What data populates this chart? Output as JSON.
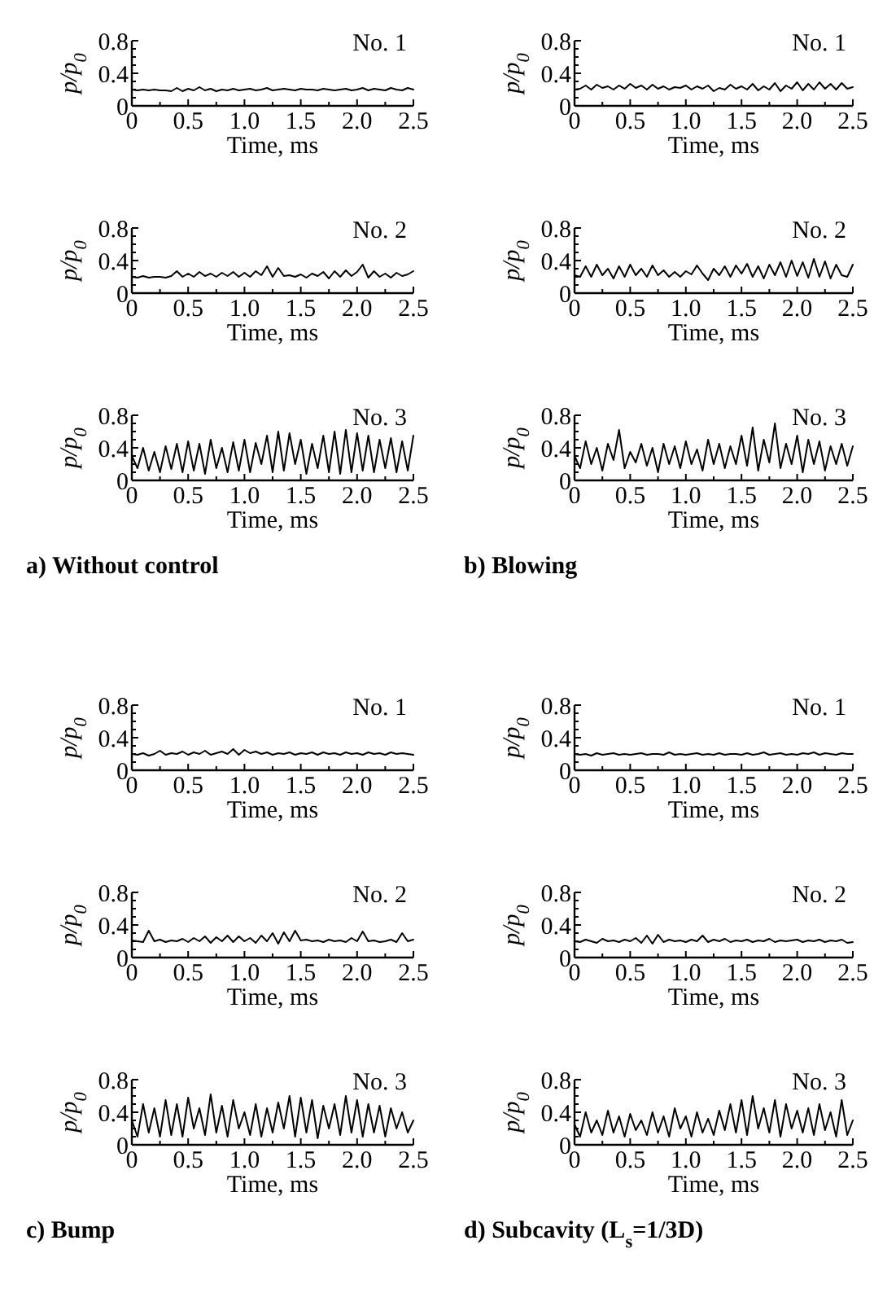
{
  "chart_data": [
    {
      "type": "line",
      "title": "No. 1",
      "xlabel": "Time, ms",
      "ylabel": "p/p$_{0}$",
      "xlim": [
        0,
        2.5
      ],
      "ylim": [
        0,
        0.8
      ],
      "xticks": [
        0,
        {
          "value": 0.25,
          "label": null
        },
        0.5,
        {
          "value": 0.75,
          "label": null
        },
        {
          "value": 1,
          "label": "1.0"
        },
        {
          "value": 1.25,
          "label": null
        },
        1.5,
        {
          "value": 1.75,
          "label": null
        },
        {
          "value": 2,
          "label": "2.0"
        },
        {
          "value": 2.25,
          "label": null
        },
        2.5
      ],
      "yticks": [
        0,
        {
          "value": 0.1,
          "label": null
        },
        {
          "value": 0.2,
          "label": null
        },
        {
          "value": 0.3,
          "label": null
        },
        0.4,
        {
          "value": 0.5,
          "label": null
        },
        {
          "value": 0.6,
          "label": null
        },
        {
          "value": 0.7,
          "label": null
        },
        0.8
      ],
      "series": [
        {
          "color": "#000000",
          "x": [
            0,
            0.05,
            0.1,
            0.15,
            0.2,
            0.25,
            0.3,
            0.35,
            0.4,
            0.45,
            0.5,
            0.55,
            0.6,
            0.65,
            0.7,
            0.75,
            0.8,
            0.85,
            0.9,
            0.95,
            1,
            1.05,
            1.1,
            1.15,
            1.2,
            1.25,
            1.3,
            1.35,
            1.4,
            1.45,
            1.5,
            1.55,
            1.6,
            1.65,
            1.7,
            1.75,
            1.8,
            1.85,
            1.9,
            1.95,
            2,
            2.05,
            2.1,
            2.15,
            2.2,
            2.25,
            2.3,
            2.35,
            2.4,
            2.45,
            2.5
          ],
          "values": [
            0.2,
            0.19,
            0.2,
            0.19,
            0.2,
            0.19,
            0.19,
            0.18,
            0.22,
            0.18,
            0.21,
            0.19,
            0.23,
            0.19,
            0.21,
            0.18,
            0.2,
            0.19,
            0.21,
            0.19,
            0.2,
            0.21,
            0.19,
            0.2,
            0.22,
            0.19,
            0.2,
            0.21,
            0.2,
            0.19,
            0.21,
            0.2,
            0.2,
            0.19,
            0.21,
            0.2,
            0.19,
            0.2,
            0.21,
            0.19,
            0.2,
            0.22,
            0.19,
            0.21,
            0.2,
            0.19,
            0.22,
            0.2,
            0.19,
            0.22,
            0.2
          ]
        }
      ]
    },
    {
      "type": "line",
      "title": "No. 1",
      "xlabel": "Time, ms",
      "ylabel": "p/p$_{0}$",
      "xlim": [
        0,
        2.5
      ],
      "ylim": [
        0,
        0.8
      ],
      "xticks": [
        0,
        {
          "value": 0.25,
          "label": null
        },
        0.5,
        {
          "value": 0.75,
          "label": null
        },
        {
          "value": 1,
          "label": "1.0"
        },
        {
          "value": 1.25,
          "label": null
        },
        1.5,
        {
          "value": 1.75,
          "label": null
        },
        {
          "value": 2,
          "label": "2.0"
        },
        {
          "value": 2.25,
          "label": null
        },
        2.5
      ],
      "yticks": [
        0,
        {
          "value": 0.1,
          "label": null
        },
        {
          "value": 0.2,
          "label": null
        },
        {
          "value": 0.3,
          "label": null
        },
        0.4,
        {
          "value": 0.5,
          "label": null
        },
        {
          "value": 0.6,
          "label": null
        },
        {
          "value": 0.7,
          "label": null
        },
        0.8
      ],
      "series": [
        {
          "color": "#000000",
          "x": [
            0,
            0.05,
            0.1,
            0.15,
            0.2,
            0.25,
            0.3,
            0.35,
            0.4,
            0.45,
            0.5,
            0.55,
            0.6,
            0.65,
            0.7,
            0.75,
            0.8,
            0.85,
            0.9,
            0.95,
            1,
            1.05,
            1.1,
            1.15,
            1.2,
            1.25,
            1.3,
            1.35,
            1.4,
            1.45,
            1.5,
            1.55,
            1.6,
            1.65,
            1.7,
            1.75,
            1.8,
            1.85,
            1.9,
            1.95,
            2,
            2.05,
            2.1,
            2.15,
            2.2,
            2.25,
            2.3,
            2.35,
            2.4,
            2.45,
            2.5
          ],
          "values": [
            0.2,
            0.21,
            0.25,
            0.2,
            0.26,
            0.22,
            0.24,
            0.2,
            0.25,
            0.21,
            0.27,
            0.22,
            0.25,
            0.2,
            0.26,
            0.21,
            0.24,
            0.2,
            0.23,
            0.22,
            0.25,
            0.2,
            0.24,
            0.21,
            0.25,
            0.18,
            0.22,
            0.2,
            0.26,
            0.21,
            0.24,
            0.2,
            0.27,
            0.19,
            0.24,
            0.2,
            0.28,
            0.18,
            0.25,
            0.21,
            0.29,
            0.19,
            0.27,
            0.2,
            0.29,
            0.21,
            0.27,
            0.2,
            0.28,
            0.21,
            0.23
          ]
        }
      ]
    },
    {
      "type": "line",
      "title": "No. 2",
      "xlabel": "Time, ms",
      "ylabel": "p/p$_{0}$",
      "xlim": [
        0,
        2.5
      ],
      "ylim": [
        0,
        0.8
      ],
      "xticks": [
        0,
        {
          "value": 0.25,
          "label": null
        },
        0.5,
        {
          "value": 0.75,
          "label": null
        },
        {
          "value": 1,
          "label": "1.0"
        },
        {
          "value": 1.25,
          "label": null
        },
        1.5,
        {
          "value": 1.75,
          "label": null
        },
        {
          "value": 2,
          "label": "2.0"
        },
        {
          "value": 2.25,
          "label": null
        },
        2.5
      ],
      "yticks": [
        0,
        {
          "value": 0.1,
          "label": null
        },
        {
          "value": 0.2,
          "label": null
        },
        {
          "value": 0.3,
          "label": null
        },
        0.4,
        {
          "value": 0.5,
          "label": null
        },
        {
          "value": 0.6,
          "label": null
        },
        {
          "value": 0.7,
          "label": null
        },
        0.8
      ],
      "series": [
        {
          "color": "#000000",
          "x": [
            0,
            0.05,
            0.1,
            0.15,
            0.2,
            0.25,
            0.3,
            0.35,
            0.4,
            0.45,
            0.5,
            0.55,
            0.6,
            0.65,
            0.7,
            0.75,
            0.8,
            0.85,
            0.9,
            0.95,
            1,
            1.05,
            1.1,
            1.15,
            1.2,
            1.25,
            1.3,
            1.35,
            1.4,
            1.45,
            1.5,
            1.55,
            1.6,
            1.65,
            1.7,
            1.75,
            1.8,
            1.85,
            1.9,
            1.95,
            2,
            2.05,
            2.1,
            2.15,
            2.2,
            2.25,
            2.3,
            2.35,
            2.4,
            2.45,
            2.5
          ],
          "values": [
            0.2,
            0.19,
            0.21,
            0.19,
            0.2,
            0.2,
            0.19,
            0.21,
            0.27,
            0.2,
            0.24,
            0.2,
            0.26,
            0.21,
            0.24,
            0.2,
            0.25,
            0.21,
            0.26,
            0.2,
            0.25,
            0.2,
            0.27,
            0.22,
            0.33,
            0.2,
            0.31,
            0.21,
            0.22,
            0.2,
            0.23,
            0.19,
            0.24,
            0.21,
            0.26,
            0.18,
            0.27,
            0.2,
            0.28,
            0.21,
            0.26,
            0.35,
            0.19,
            0.27,
            0.2,
            0.24,
            0.19,
            0.25,
            0.21,
            0.23,
            0.27
          ]
        }
      ]
    },
    {
      "type": "line",
      "title": "No. 2",
      "xlabel": "Time, ms",
      "ylabel": "p/p$_{0}$",
      "xlim": [
        0,
        2.5
      ],
      "ylim": [
        0,
        0.8
      ],
      "xticks": [
        0,
        {
          "value": 0.25,
          "label": null
        },
        0.5,
        {
          "value": 0.75,
          "label": null
        },
        {
          "value": 1,
          "label": "1.0"
        },
        {
          "value": 1.25,
          "label": null
        },
        1.5,
        {
          "value": 1.75,
          "label": null
        },
        {
          "value": 2,
          "label": "2.0"
        },
        {
          "value": 2.25,
          "label": null
        },
        2.5
      ],
      "yticks": [
        0,
        {
          "value": 0.1,
          "label": null
        },
        {
          "value": 0.2,
          "label": null
        },
        {
          "value": 0.3,
          "label": null
        },
        0.4,
        {
          "value": 0.5,
          "label": null
        },
        {
          "value": 0.6,
          "label": null
        },
        {
          "value": 0.7,
          "label": null
        },
        0.8
      ],
      "series": [
        {
          "color": "#000000",
          "x": [
            0,
            0.05,
            0.1,
            0.15,
            0.2,
            0.25,
            0.3,
            0.35,
            0.4,
            0.45,
            0.5,
            0.55,
            0.6,
            0.65,
            0.7,
            0.75,
            0.8,
            0.85,
            0.9,
            0.95,
            1,
            1.05,
            1.1,
            1.15,
            1.2,
            1.25,
            1.3,
            1.35,
            1.4,
            1.45,
            1.5,
            1.55,
            1.6,
            1.65,
            1.7,
            1.75,
            1.8,
            1.85,
            1.9,
            1.95,
            2,
            2.05,
            2.1,
            2.15,
            2.2,
            2.25,
            2.3,
            2.35,
            2.4,
            2.45,
            2.5
          ],
          "values": [
            0.22,
            0.2,
            0.33,
            0.2,
            0.35,
            0.22,
            0.3,
            0.18,
            0.33,
            0.2,
            0.35,
            0.22,
            0.3,
            0.2,
            0.34,
            0.22,
            0.28,
            0.2,
            0.26,
            0.2,
            0.27,
            0.23,
            0.34,
            0.24,
            0.16,
            0.3,
            0.22,
            0.33,
            0.2,
            0.34,
            0.24,
            0.36,
            0.2,
            0.33,
            0.18,
            0.35,
            0.22,
            0.38,
            0.2,
            0.4,
            0.21,
            0.38,
            0.19,
            0.42,
            0.2,
            0.39,
            0.18,
            0.35,
            0.22,
            0.2,
            0.35
          ]
        }
      ]
    },
    {
      "type": "line",
      "title": "No. 3",
      "xlabel": "Time, ms",
      "ylabel": "p/p$_{0}$",
      "annotations": [
        "a) Without control"
      ],
      "xlim": [
        0,
        2.5
      ],
      "ylim": [
        0,
        0.8
      ],
      "xticks": [
        0,
        {
          "value": 0.25,
          "label": null
        },
        0.5,
        {
          "value": 0.75,
          "label": null
        },
        {
          "value": 1,
          "label": "1.0"
        },
        {
          "value": 1.25,
          "label": null
        },
        1.5,
        {
          "value": 1.75,
          "label": null
        },
        {
          "value": 2,
          "label": "2.0"
        },
        {
          "value": 2.25,
          "label": null
        },
        2.5
      ],
      "yticks": [
        0,
        {
          "value": 0.1,
          "label": null
        },
        {
          "value": 0.2,
          "label": null
        },
        {
          "value": 0.3,
          "label": null
        },
        0.4,
        {
          "value": 0.5,
          "label": null
        },
        {
          "value": 0.6,
          "label": null
        },
        {
          "value": 0.7,
          "label": null
        },
        0.8
      ],
      "series": [
        {
          "color": "#000000",
          "x": [
            0,
            0.05,
            0.1,
            0.15,
            0.2,
            0.25,
            0.3,
            0.35,
            0.4,
            0.45,
            0.5,
            0.55,
            0.6,
            0.65,
            0.7,
            0.75,
            0.8,
            0.85,
            0.9,
            0.95,
            1,
            1.05,
            1.1,
            1.15,
            1.2,
            1.25,
            1.3,
            1.35,
            1.4,
            1.45,
            1.5,
            1.55,
            1.6,
            1.65,
            1.7,
            1.75,
            1.8,
            1.85,
            1.9,
            1.95,
            2,
            2.05,
            2.1,
            2.15,
            2.2,
            2.25,
            2.3,
            2.35,
            2.4,
            2.45,
            2.5
          ],
          "values": [
            0.3,
            0.15,
            0.4,
            0.12,
            0.35,
            0.1,
            0.42,
            0.14,
            0.45,
            0.1,
            0.48,
            0.12,
            0.45,
            0.08,
            0.5,
            0.15,
            0.4,
            0.1,
            0.47,
            0.12,
            0.5,
            0.1,
            0.46,
            0.2,
            0.55,
            0.1,
            0.6,
            0.12,
            0.58,
            0.2,
            0.5,
            0.08,
            0.45,
            0.15,
            0.55,
            0.1,
            0.6,
            0.08,
            0.62,
            0.1,
            0.58,
            0.12,
            0.55,
            0.1,
            0.5,
            0.15,
            0.52,
            0.1,
            0.48,
            0.12,
            0.55
          ]
        }
      ]
    },
    {
      "type": "line",
      "title": "No. 3",
      "xlabel": "Time, ms",
      "ylabel": "p/p$_{0}$",
      "annotations": [
        "b) Blowing"
      ],
      "xlim": [
        0,
        2.5
      ],
      "ylim": [
        0,
        0.8
      ],
      "xticks": [
        0,
        {
          "value": 0.25,
          "label": null
        },
        0.5,
        {
          "value": 0.75,
          "label": null
        },
        {
          "value": 1,
          "label": "1.0"
        },
        {
          "value": 1.25,
          "label": null
        },
        1.5,
        {
          "value": 1.75,
          "label": null
        },
        {
          "value": 2,
          "label": "2.0"
        },
        {
          "value": 2.25,
          "label": null
        },
        2.5
      ],
      "yticks": [
        0,
        {
          "value": 0.1,
          "label": null
        },
        {
          "value": 0.2,
          "label": null
        },
        {
          "value": 0.3,
          "label": null
        },
        0.4,
        {
          "value": 0.5,
          "label": null
        },
        {
          "value": 0.6,
          "label": null
        },
        {
          "value": 0.7,
          "label": null
        },
        0.8
      ],
      "series": [
        {
          "color": "#000000",
          "x": [
            0,
            0.05,
            0.1,
            0.15,
            0.2,
            0.25,
            0.3,
            0.35,
            0.4,
            0.45,
            0.5,
            0.55,
            0.6,
            0.65,
            0.7,
            0.75,
            0.8,
            0.85,
            0.9,
            0.95,
            1,
            1.05,
            1.1,
            1.15,
            1.2,
            1.25,
            1.3,
            1.35,
            1.4,
            1.45,
            1.5,
            1.55,
            1.6,
            1.65,
            1.7,
            1.75,
            1.8,
            1.85,
            1.9,
            1.95,
            2,
            2.05,
            2.1,
            2.15,
            2.2,
            2.25,
            2.3,
            2.35,
            2.4,
            2.45,
            2.5
          ],
          "values": [
            0.3,
            0.15,
            0.48,
            0.2,
            0.4,
            0.12,
            0.45,
            0.25,
            0.62,
            0.15,
            0.35,
            0.22,
            0.45,
            0.18,
            0.4,
            0.1,
            0.45,
            0.2,
            0.42,
            0.15,
            0.48,
            0.2,
            0.38,
            0.12,
            0.5,
            0.2,
            0.45,
            0.15,
            0.42,
            0.2,
            0.55,
            0.18,
            0.65,
            0.12,
            0.5,
            0.22,
            0.7,
            0.15,
            0.45,
            0.2,
            0.55,
            0.1,
            0.5,
            0.2,
            0.48,
            0.12,
            0.42,
            0.2,
            0.45,
            0.18,
            0.42
          ]
        }
      ]
    },
    {
      "type": "line",
      "title": "No. 1",
      "xlabel": "Time, ms",
      "ylabel": "p/p$_{0}$",
      "xlim": [
        0,
        2.5
      ],
      "ylim": [
        0,
        0.8
      ],
      "xticks": [
        0,
        {
          "value": 0.25,
          "label": null
        },
        0.5,
        {
          "value": 0.75,
          "label": null
        },
        {
          "value": 1,
          "label": "1.0"
        },
        {
          "value": 1.25,
          "label": null
        },
        1.5,
        {
          "value": 1.75,
          "label": null
        },
        {
          "value": 2,
          "label": "2.0"
        },
        {
          "value": 2.25,
          "label": null
        },
        2.5
      ],
      "yticks": [
        0,
        {
          "value": 0.1,
          "label": null
        },
        {
          "value": 0.2,
          "label": null
        },
        {
          "value": 0.3,
          "label": null
        },
        0.4,
        {
          "value": 0.5,
          "label": null
        },
        {
          "value": 0.6,
          "label": null
        },
        {
          "value": 0.7,
          "label": null
        },
        0.8
      ],
      "series": [
        {
          "color": "#000000",
          "x": [
            0,
            0.05,
            0.1,
            0.15,
            0.2,
            0.25,
            0.3,
            0.35,
            0.4,
            0.45,
            0.5,
            0.55,
            0.6,
            0.65,
            0.7,
            0.75,
            0.8,
            0.85,
            0.9,
            0.95,
            1,
            1.05,
            1.1,
            1.15,
            1.2,
            1.25,
            1.3,
            1.35,
            1.4,
            1.45,
            1.5,
            1.55,
            1.6,
            1.65,
            1.7,
            1.75,
            1.8,
            1.85,
            1.9,
            1.95,
            2,
            2.05,
            2.1,
            2.15,
            2.2,
            2.25,
            2.3,
            2.35,
            2.4,
            2.45,
            2.5
          ],
          "values": [
            0.2,
            0.19,
            0.21,
            0.18,
            0.2,
            0.24,
            0.19,
            0.21,
            0.2,
            0.23,
            0.19,
            0.22,
            0.2,
            0.24,
            0.19,
            0.21,
            0.23,
            0.2,
            0.26,
            0.19,
            0.25,
            0.21,
            0.23,
            0.2,
            0.22,
            0.19,
            0.21,
            0.2,
            0.22,
            0.19,
            0.21,
            0.2,
            0.22,
            0.19,
            0.22,
            0.2,
            0.21,
            0.19,
            0.22,
            0.2,
            0.21,
            0.19,
            0.22,
            0.2,
            0.21,
            0.19,
            0.22,
            0.2,
            0.21,
            0.2,
            0.19
          ]
        }
      ]
    },
    {
      "type": "line",
      "title": "No. 1",
      "xlabel": "Time, ms",
      "ylabel": "p/p$_{0}$",
      "xlim": [
        0,
        2.5
      ],
      "ylim": [
        0,
        0.8
      ],
      "xticks": [
        0,
        {
          "value": 0.25,
          "label": null
        },
        0.5,
        {
          "value": 0.75,
          "label": null
        },
        {
          "value": 1,
          "label": "1.0"
        },
        {
          "value": 1.25,
          "label": null
        },
        1.5,
        {
          "value": 1.75,
          "label": null
        },
        {
          "value": 2,
          "label": "2.0"
        },
        {
          "value": 2.25,
          "label": null
        },
        2.5
      ],
      "yticks": [
        0,
        {
          "value": 0.1,
          "label": null
        },
        {
          "value": 0.2,
          "label": null
        },
        {
          "value": 0.3,
          "label": null
        },
        0.4,
        {
          "value": 0.5,
          "label": null
        },
        {
          "value": 0.6,
          "label": null
        },
        {
          "value": 0.7,
          "label": null
        },
        0.8
      ],
      "series": [
        {
          "color": "#000000",
          "x": [
            0,
            0.05,
            0.1,
            0.15,
            0.2,
            0.25,
            0.3,
            0.35,
            0.4,
            0.45,
            0.5,
            0.55,
            0.6,
            0.65,
            0.7,
            0.75,
            0.8,
            0.85,
            0.9,
            0.95,
            1,
            1.05,
            1.1,
            1.15,
            1.2,
            1.25,
            1.3,
            1.35,
            1.4,
            1.45,
            1.5,
            1.55,
            1.6,
            1.65,
            1.7,
            1.75,
            1.8,
            1.85,
            1.9,
            1.95,
            2,
            2.05,
            2.1,
            2.15,
            2.2,
            2.25,
            2.3,
            2.35,
            2.4,
            2.45,
            2.5
          ],
          "values": [
            0.2,
            0.19,
            0.2,
            0.18,
            0.21,
            0.19,
            0.2,
            0.21,
            0.19,
            0.2,
            0.19,
            0.2,
            0.21,
            0.19,
            0.2,
            0.2,
            0.19,
            0.22,
            0.19,
            0.2,
            0.19,
            0.2,
            0.21,
            0.19,
            0.2,
            0.19,
            0.21,
            0.19,
            0.2,
            0.2,
            0.19,
            0.21,
            0.19,
            0.2,
            0.22,
            0.19,
            0.2,
            0.21,
            0.19,
            0.2,
            0.19,
            0.21,
            0.2,
            0.22,
            0.19,
            0.21,
            0.2,
            0.19,
            0.21,
            0.2,
            0.2
          ]
        }
      ]
    },
    {
      "type": "line",
      "title": "No. 2",
      "xlabel": "Time, ms",
      "ylabel": "p/p$_{0}$",
      "xlim": [
        0,
        2.5
      ],
      "ylim": [
        0,
        0.8
      ],
      "xticks": [
        0,
        {
          "value": 0.25,
          "label": null
        },
        0.5,
        {
          "value": 0.75,
          "label": null
        },
        {
          "value": 1,
          "label": "1.0"
        },
        {
          "value": 1.25,
          "label": null
        },
        1.5,
        {
          "value": 1.75,
          "label": null
        },
        {
          "value": 2,
          "label": "2.0"
        },
        {
          "value": 2.25,
          "label": null
        },
        2.5
      ],
      "yticks": [
        0,
        {
          "value": 0.1,
          "label": null
        },
        {
          "value": 0.2,
          "label": null
        },
        {
          "value": 0.3,
          "label": null
        },
        0.4,
        {
          "value": 0.5,
          "label": null
        },
        {
          "value": 0.6,
          "label": null
        },
        {
          "value": 0.7,
          "label": null
        },
        0.8
      ],
      "series": [
        {
          "color": "#000000",
          "x": [
            0,
            0.05,
            0.1,
            0.15,
            0.2,
            0.25,
            0.3,
            0.35,
            0.4,
            0.45,
            0.5,
            0.55,
            0.6,
            0.65,
            0.7,
            0.75,
            0.8,
            0.85,
            0.9,
            0.95,
            1,
            1.05,
            1.1,
            1.15,
            1.2,
            1.25,
            1.3,
            1.35,
            1.4,
            1.45,
            1.5,
            1.55,
            1.6,
            1.65,
            1.7,
            1.75,
            1.8,
            1.85,
            1.9,
            1.95,
            2,
            2.05,
            2.1,
            2.15,
            2.2,
            2.25,
            2.3,
            2.35,
            2.4,
            2.45,
            2.5
          ],
          "values": [
            0.21,
            0.2,
            0.19,
            0.33,
            0.2,
            0.22,
            0.19,
            0.21,
            0.2,
            0.23,
            0.19,
            0.24,
            0.2,
            0.26,
            0.18,
            0.25,
            0.2,
            0.27,
            0.19,
            0.26,
            0.2,
            0.24,
            0.18,
            0.27,
            0.2,
            0.3,
            0.17,
            0.31,
            0.2,
            0.33,
            0.21,
            0.22,
            0.2,
            0.21,
            0.19,
            0.22,
            0.2,
            0.21,
            0.19,
            0.24,
            0.2,
            0.32,
            0.2,
            0.21,
            0.19,
            0.2,
            0.22,
            0.19,
            0.3,
            0.2,
            0.22
          ]
        }
      ]
    },
    {
      "type": "line",
      "title": "No. 2",
      "xlabel": "Time, ms",
      "ylabel": "p/p$_{0}$",
      "xlim": [
        0,
        2.5
      ],
      "ylim": [
        0,
        0.8
      ],
      "xticks": [
        0,
        {
          "value": 0.25,
          "label": null
        },
        0.5,
        {
          "value": 0.75,
          "label": null
        },
        {
          "value": 1,
          "label": "1.0"
        },
        {
          "value": 1.25,
          "label": null
        },
        1.5,
        {
          "value": 1.75,
          "label": null
        },
        {
          "value": 2,
          "label": "2.0"
        },
        {
          "value": 2.25,
          "label": null
        },
        2.5
      ],
      "yticks": [
        0,
        {
          "value": 0.1,
          "label": null
        },
        {
          "value": 0.2,
          "label": null
        },
        {
          "value": 0.3,
          "label": null
        },
        0.4,
        {
          "value": 0.5,
          "label": null
        },
        {
          "value": 0.6,
          "label": null
        },
        {
          "value": 0.7,
          "label": null
        },
        0.8
      ],
      "series": [
        {
          "color": "#000000",
          "x": [
            0,
            0.05,
            0.1,
            0.15,
            0.2,
            0.25,
            0.3,
            0.35,
            0.4,
            0.45,
            0.5,
            0.55,
            0.6,
            0.65,
            0.7,
            0.75,
            0.8,
            0.85,
            0.9,
            0.95,
            1,
            1.05,
            1.1,
            1.15,
            1.2,
            1.25,
            1.3,
            1.35,
            1.4,
            1.45,
            1.5,
            1.55,
            1.6,
            1.65,
            1.7,
            1.75,
            1.8,
            1.85,
            1.9,
            1.95,
            2,
            2.05,
            2.1,
            2.15,
            2.2,
            2.25,
            2.3,
            2.35,
            2.4,
            2.45,
            2.5
          ],
          "values": [
            0.2,
            0.19,
            0.22,
            0.2,
            0.18,
            0.23,
            0.2,
            0.21,
            0.19,
            0.22,
            0.2,
            0.24,
            0.18,
            0.27,
            0.17,
            0.28,
            0.19,
            0.22,
            0.2,
            0.21,
            0.19,
            0.22,
            0.2,
            0.27,
            0.19,
            0.22,
            0.2,
            0.23,
            0.19,
            0.21,
            0.2,
            0.22,
            0.19,
            0.21,
            0.2,
            0.23,
            0.19,
            0.21,
            0.2,
            0.21,
            0.22,
            0.19,
            0.21,
            0.2,
            0.22,
            0.19,
            0.21,
            0.2,
            0.22,
            0.18,
            0.19
          ]
        }
      ]
    },
    {
      "type": "line",
      "title": "No. 3",
      "xlabel": "Time, ms",
      "ylabel": "p/p$_{0}$",
      "annotations": [
        "c) Bump"
      ],
      "xlim": [
        0,
        2.5
      ],
      "ylim": [
        0,
        0.8
      ],
      "xticks": [
        0,
        {
          "value": 0.25,
          "label": null
        },
        0.5,
        {
          "value": 0.75,
          "label": null
        },
        {
          "value": 1,
          "label": "1.0"
        },
        {
          "value": 1.25,
          "label": null
        },
        1.5,
        {
          "value": 1.75,
          "label": null
        },
        {
          "value": 2,
          "label": "2.0"
        },
        {
          "value": 2.25,
          "label": null
        },
        2.5
      ],
      "yticks": [
        0,
        {
          "value": 0.1,
          "label": null
        },
        {
          "value": 0.2,
          "label": null
        },
        {
          "value": 0.3,
          "label": null
        },
        0.4,
        {
          "value": 0.5,
          "label": null
        },
        {
          "value": 0.6,
          "label": null
        },
        {
          "value": 0.7,
          "label": null
        },
        0.8
      ],
      "series": [
        {
          "color": "#000000",
          "x": [
            0,
            0.05,
            0.1,
            0.15,
            0.2,
            0.25,
            0.3,
            0.35,
            0.4,
            0.45,
            0.5,
            0.55,
            0.6,
            0.65,
            0.7,
            0.75,
            0.8,
            0.85,
            0.9,
            0.95,
            1,
            1.05,
            1.1,
            1.15,
            1.2,
            1.25,
            1.3,
            1.35,
            1.4,
            1.45,
            1.5,
            1.55,
            1.6,
            1.65,
            1.7,
            1.75,
            1.8,
            1.85,
            1.9,
            1.95,
            2,
            2.05,
            2.1,
            2.15,
            2.2,
            2.25,
            2.3,
            2.35,
            2.4,
            2.45,
            2.5
          ],
          "values": [
            0.3,
            0.1,
            0.5,
            0.15,
            0.45,
            0.1,
            0.55,
            0.12,
            0.5,
            0.1,
            0.58,
            0.2,
            0.45,
            0.12,
            0.62,
            0.15,
            0.48,
            0.1,
            0.55,
            0.2,
            0.4,
            0.12,
            0.5,
            0.1,
            0.45,
            0.15,
            0.52,
            0.2,
            0.6,
            0.1,
            0.58,
            0.15,
            0.55,
            0.08,
            0.48,
            0.2,
            0.5,
            0.12,
            0.6,
            0.15,
            0.55,
            0.1,
            0.5,
            0.15,
            0.48,
            0.1,
            0.45,
            0.2,
            0.4,
            0.15,
            0.3
          ]
        }
      ]
    },
    {
      "type": "line",
      "title": "No. 3",
      "xlabel": "Time, ms",
      "ylabel": "p/p$_{0}$",
      "annotations": [
        "d) Subcavity (L$_{s}$=1/3D)"
      ],
      "xlim": [
        0,
        2.5
      ],
      "ylim": [
        0,
        0.8
      ],
      "xticks": [
        0,
        {
          "value": 0.25,
          "label": null
        },
        0.5,
        {
          "value": 0.75,
          "label": null
        },
        {
          "value": 1,
          "label": "1.0"
        },
        {
          "value": 1.25,
          "label": null
        },
        1.5,
        {
          "value": 1.75,
          "label": null
        },
        {
          "value": 2,
          "label": "2.0"
        },
        {
          "value": 2.25,
          "label": null
        },
        2.5
      ],
      "yticks": [
        0,
        {
          "value": 0.1,
          "label": null
        },
        {
          "value": 0.2,
          "label": null
        },
        {
          "value": 0.3,
          "label": null
        },
        0.4,
        {
          "value": 0.5,
          "label": null
        },
        {
          "value": 0.6,
          "label": null
        },
        {
          "value": 0.7,
          "label": null
        },
        0.8
      ],
      "series": [
        {
          "color": "#000000",
          "x": [
            0,
            0.05,
            0.1,
            0.15,
            0.2,
            0.25,
            0.3,
            0.35,
            0.4,
            0.45,
            0.5,
            0.55,
            0.6,
            0.65,
            0.7,
            0.75,
            0.8,
            0.85,
            0.9,
            0.95,
            1,
            1.05,
            1.1,
            1.15,
            1.2,
            1.25,
            1.3,
            1.35,
            1.4,
            1.45,
            1.5,
            1.55,
            1.6,
            1.65,
            1.7,
            1.75,
            1.8,
            1.85,
            1.9,
            1.95,
            2,
            2.05,
            2.1,
            2.15,
            2.2,
            2.25,
            2.3,
            2.35,
            2.4,
            2.45,
            2.5
          ],
          "values": [
            0.25,
            0.1,
            0.4,
            0.15,
            0.3,
            0.12,
            0.42,
            0.15,
            0.35,
            0.1,
            0.38,
            0.18,
            0.3,
            0.12,
            0.4,
            0.15,
            0.35,
            0.1,
            0.45,
            0.2,
            0.35,
            0.1,
            0.4,
            0.15,
            0.32,
            0.12,
            0.42,
            0.18,
            0.5,
            0.15,
            0.55,
            0.12,
            0.6,
            0.2,
            0.45,
            0.15,
            0.55,
            0.1,
            0.5,
            0.2,
            0.42,
            0.15,
            0.45,
            0.12,
            0.5,
            0.18,
            0.4,
            0.1,
            0.55,
            0.12,
            0.3
          ]
        }
      ]
    }
  ]
}
